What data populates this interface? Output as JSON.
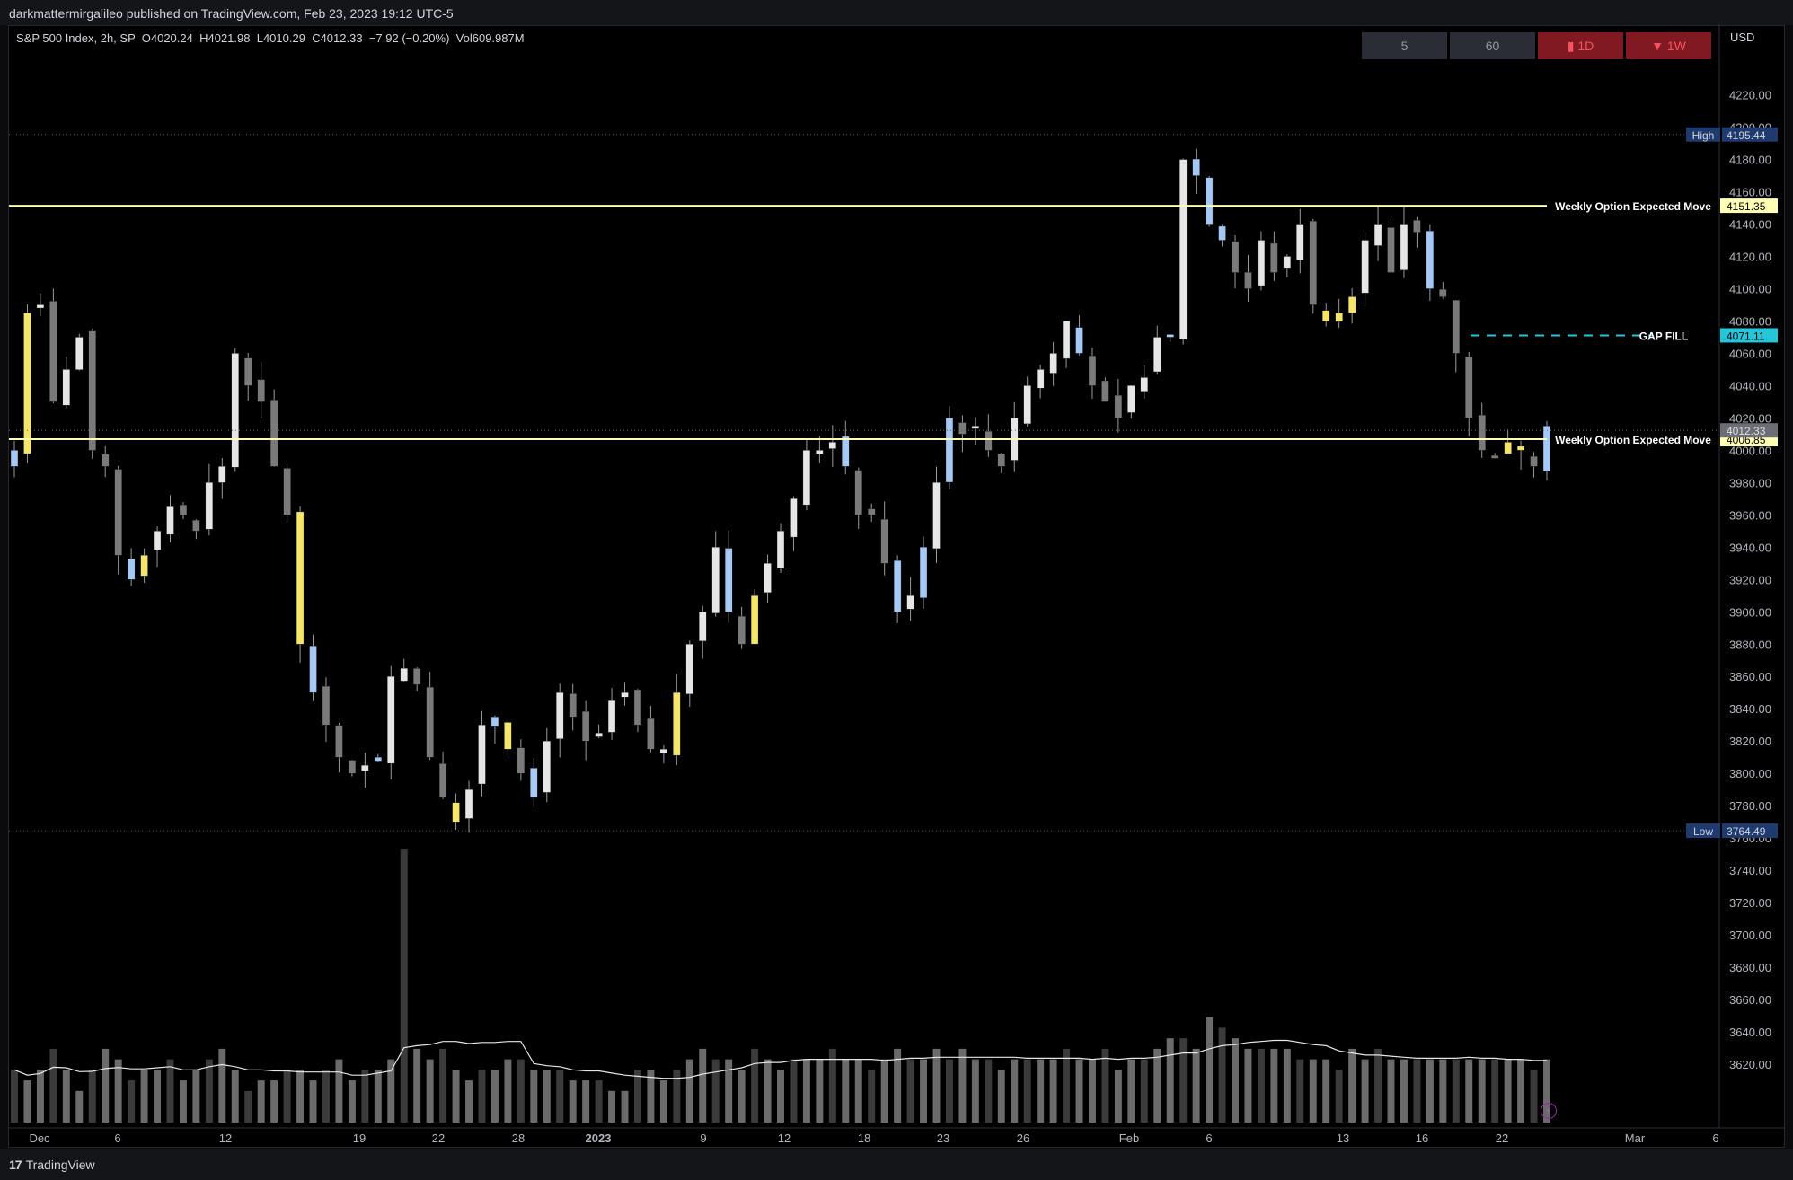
{
  "publisher_line": "darkmattermirgalileo published on TradingView.com, Feb 23, 2023 19:12 UTC-5",
  "legend": {
    "symbol": "S&P 500 Index, 2h, SP",
    "open": "O4020.24",
    "high": "H4021.98",
    "low": "L4010.29",
    "close": "C4012.33",
    "change": "−7.92 (−0.20%)",
    "volume": "Vol609.987M"
  },
  "interval_buttons": [
    {
      "label": "5",
      "style": "gray"
    },
    {
      "label": "60",
      "style": "gray"
    },
    {
      "label": "▮ 1D",
      "style": "red"
    },
    {
      "label": "▼ 1W",
      "style": "red"
    }
  ],
  "currency": "USD",
  "footer": {
    "logo_text": "TradingView",
    "logo_mark": "17"
  },
  "colors": {
    "background": "#000000",
    "candle_up": "#e6e6e6",
    "candle_down": "#7a7a7a",
    "candle_blue": "#a6c8f5",
    "candle_yellow": "#f5e56b",
    "expected_move_line": "#ffffb3",
    "gap_fill": "#26c6da",
    "high_low_label": "#1e3a6e"
  },
  "chart_data": {
    "type": "candlestick",
    "symbol": "S&P 500 Index",
    "timeframe": "2h",
    "y_axis": {
      "range": [
        3605,
        4232
      ],
      "ticks": [
        3620,
        3640,
        3660,
        3680,
        3700,
        3720,
        3740,
        3760,
        3780,
        3800,
        3820,
        3840,
        3860,
        3880,
        3900,
        3920,
        3940,
        3960,
        3980,
        4000,
        4020,
        4040,
        4060,
        4080,
        4100,
        4120,
        4140,
        4160,
        4180,
        4200,
        4220
      ]
    },
    "x_axis": {
      "ticks": [
        "Dec",
        "6",
        "12",
        "19",
        "22",
        "28",
        "2023",
        "9",
        "12",
        "18",
        "23",
        "26",
        "Feb",
        "6",
        "13",
        "16",
        "22",
        "Mar",
        "6"
      ]
    },
    "horizontal_lines": [
      {
        "label": "Weekly Option Expected Move",
        "value": 4151.35,
        "value_label": "4151.35"
      },
      {
        "label": "Weekly Option Expected Move",
        "value": 4006.85,
        "value_label": "4006.85"
      },
      {
        "label": "GAP FILL",
        "value": 4071.11,
        "value_label": "4071.11",
        "style": "dashed"
      }
    ],
    "markers": [
      {
        "label": "High",
        "value": 4195.44,
        "value_label": "4195.44"
      },
      {
        "label": "Low",
        "value": 3764.49,
        "value_label": "3764.49"
      }
    ],
    "last_price": {
      "value": 4012.33,
      "value_label": "4012.33"
    },
    "price_path": [
      4000,
      4085,
      4090,
      4030,
      4050,
      4070,
      4000,
      3990,
      3935,
      3920,
      3935,
      3950,
      3965,
      3960,
      3950,
      3980,
      3990,
      4060,
      4040,
      4030,
      3990,
      3960,
      3880,
      3850,
      3830,
      3810,
      3800,
      3805,
      3810,
      3860,
      3865,
      3855,
      3810,
      3785,
      3770,
      3790,
      3830,
      3835,
      3815,
      3800,
      3785,
      3820,
      3850,
      3835,
      3820,
      3825,
      3845,
      3850,
      3830,
      3815,
      3815,
      3850,
      3880,
      3900,
      3940,
      3900,
      3880,
      3910,
      3930,
      3950,
      3970,
      4000,
      4000,
      4005,
      3990,
      3960,
      3960,
      3930,
      3900,
      3910,
      3940,
      3980,
      4020,
      4010,
      4015,
      4000,
      3990,
      4020,
      4040,
      4050,
      4060,
      4080,
      4060,
      4040,
      4030,
      4020,
      4040,
      4045,
      4070,
      4070,
      4180,
      4170,
      4140,
      4130,
      4110,
      4100,
      4130,
      4110,
      4120,
      4140,
      4090,
      4080,
      4085,
      4095,
      4130,
      4140,
      4110,
      4140,
      4135,
      4100,
      4095,
      4060,
      4020,
      4000,
      3995,
      4005,
      4000,
      3990,
      4015
    ],
    "volume": {
      "scale": [
        0,
        2.6
      ],
      "values": [
        0.5,
        0.4,
        0.5,
        0.7,
        0.5,
        0.3,
        0.5,
        0.7,
        0.6,
        0.4,
        0.5,
        0.5,
        0.6,
        0.4,
        0.5,
        0.6,
        0.7,
        0.5,
        0.3,
        0.4,
        0.4,
        0.5,
        0.5,
        0.4,
        0.5,
        0.6,
        0.4,
        0.5,
        0.5,
        0.6,
        2.6,
        0.7,
        0.6,
        0.7,
        0.5,
        0.4,
        0.5,
        0.5,
        0.6,
        0.6,
        0.5,
        0.5,
        0.5,
        0.4,
        0.4,
        0.4,
        0.3,
        0.3,
        0.5,
        0.5,
        0.4,
        0.5,
        0.6,
        0.7,
        0.6,
        0.6,
        0.5,
        0.7,
        0.6,
        0.5,
        0.6,
        0.6,
        0.6,
        0.7,
        0.6,
        0.6,
        0.5,
        0.6,
        0.7,
        0.6,
        0.6,
        0.7,
        0.6,
        0.7,
        0.6,
        0.6,
        0.5,
        0.6,
        0.6,
        0.6,
        0.6,
        0.7,
        0.6,
        0.6,
        0.7,
        0.5,
        0.6,
        0.6,
        0.7,
        0.8,
        0.8,
        0.7,
        1.0,
        0.9,
        0.8,
        0.7,
        0.7,
        0.7,
        0.7,
        0.6,
        0.6,
        0.6,
        0.5,
        0.7,
        0.6,
        0.7,
        0.6,
        0.6,
        0.6,
        0.6,
        0.6,
        0.6,
        0.6,
        0.6,
        0.6,
        0.6,
        0.6,
        0.5,
        0.6
      ]
    }
  }
}
